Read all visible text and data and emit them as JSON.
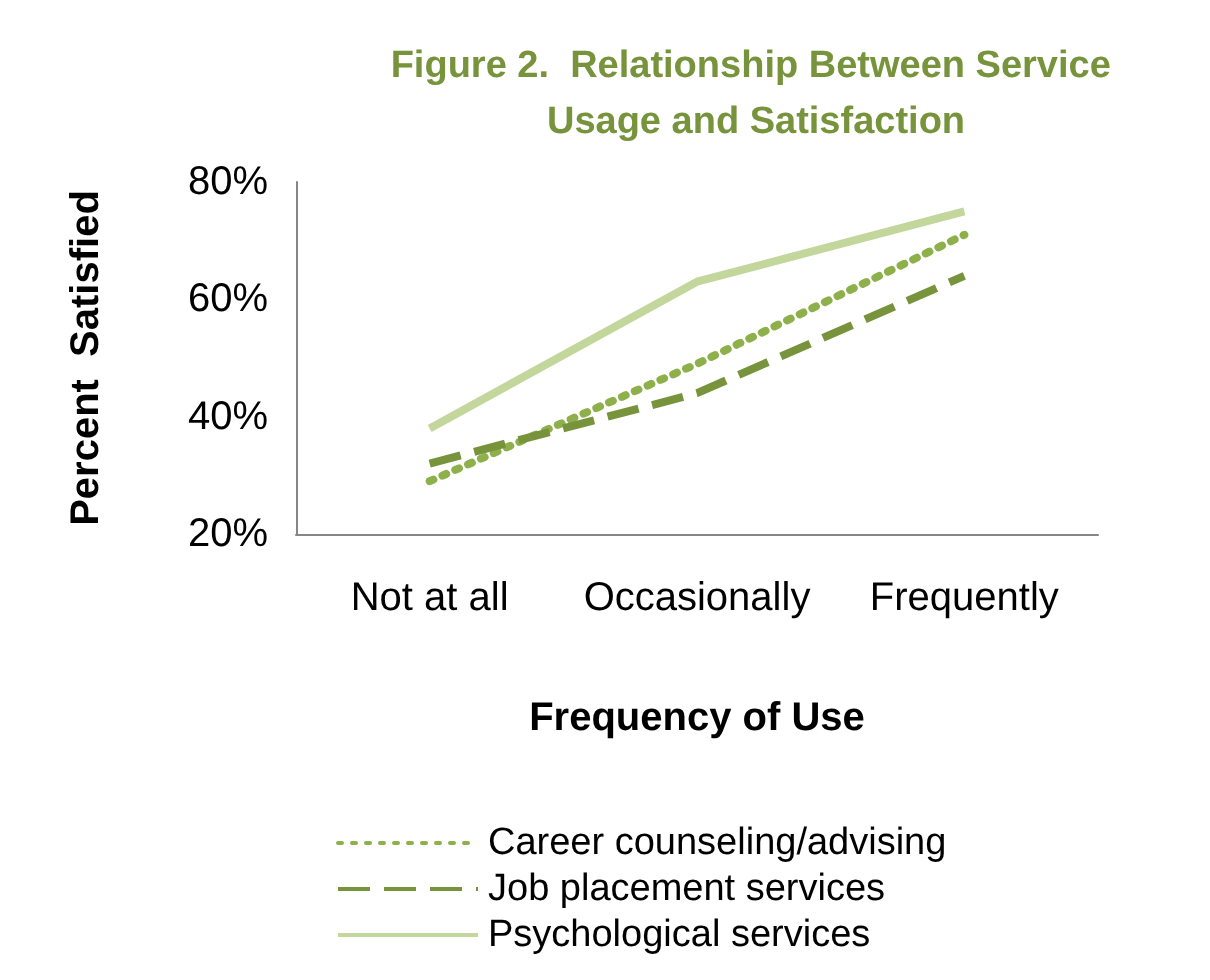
{
  "chart_data": {
    "type": "line",
    "title": "Figure 2.  Relationship Between Service Usage and Satisfaction",
    "xlabel": "Frequency of Use",
    "ylabel": "Percent  Satisfied",
    "categories": [
      "Not at all",
      "Occasionally",
      "Frequently"
    ],
    "series": [
      {
        "name": "Career counseling/advising",
        "color": "#8db04a",
        "line_style": "dotted",
        "values": [
          29,
          49,
          71
        ]
      },
      {
        "name": "Job placement services",
        "color": "#77933c",
        "line_style": "dashed",
        "values": [
          32,
          44,
          64
        ]
      },
      {
        "name": "Psychological services",
        "color": "#c3d69b",
        "line_style": "solid",
        "values": [
          38,
          63,
          75
        ]
      }
    ],
    "ylim": [
      20,
      80
    ],
    "yticks": [
      {
        "value": 20,
        "label": "20%"
      },
      {
        "value": 40,
        "label": "40%"
      },
      {
        "value": 60,
        "label": "60%"
      },
      {
        "value": 80,
        "label": "80%"
      }
    ],
    "grid": false,
    "legend": "bottom",
    "marker": "none"
  }
}
